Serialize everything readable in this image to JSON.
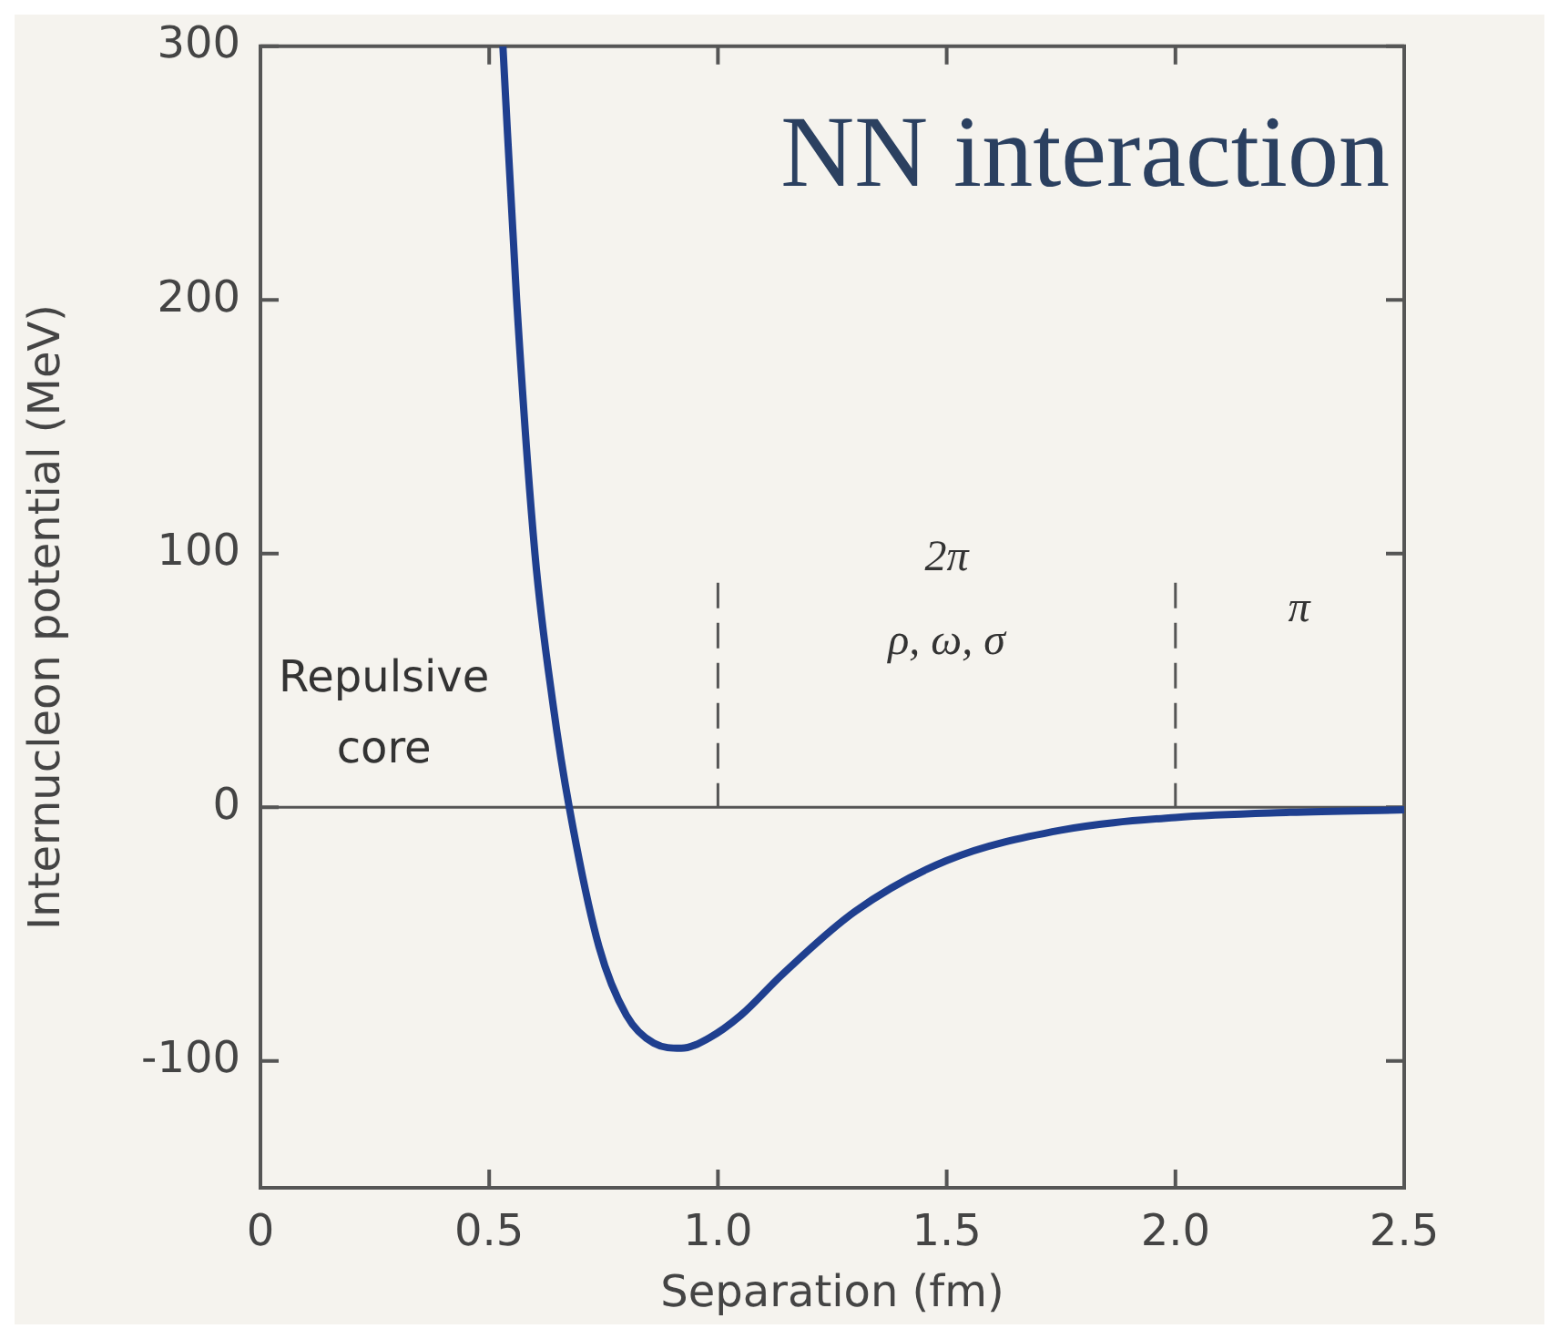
{
  "chart_data": {
    "type": "line",
    "title": "NN interaction",
    "xlabel": "Separation (fm)",
    "ylabel": "Internucleon potential (MeV)",
    "x": [
      0.53,
      0.56,
      0.6,
      0.64,
      0.675,
      0.74,
      0.8,
      0.86,
      0.92,
      0.98,
      1.05,
      1.14,
      1.3,
      1.5,
      1.75,
      2.0,
      2.25,
      2.5
    ],
    "series": [
      {
        "color": "#1f3f8f",
        "values": [
          300,
          200,
          100,
          40,
          0,
          -55,
          -82,
          -93,
          -95,
          -91,
          -82,
          -66,
          -41,
          -21,
          -9,
          -4,
          -2,
          -1
        ]
      }
    ],
    "xlim": [
      0,
      2.5
    ],
    "xticks": [
      0,
      0.5,
      {
        "value": 1,
        "label": "1.0"
      },
      1.5,
      {
        "value": 2,
        "label": "2.0"
      },
      2.5
    ],
    "ylim": [
      -150,
      300
    ],
    "yticks": [
      -100,
      0,
      100,
      200,
      300
    ],
    "ref_lines": [
      {
        "axis": "y",
        "value": 0,
        "color": "#555555",
        "line_style": "solid"
      },
      {
        "axis": "x",
        "value": 1,
        "color": "#555555",
        "line_style": "dashed"
      },
      {
        "axis": "x",
        "value": 2,
        "color": "#555555",
        "line_style": "dashed"
      }
    ],
    "annotations": [
      "Repulsive",
      "core",
      "2π",
      "ρ, ω, σ",
      "π"
    ],
    "grid": false,
    "legend": false,
    "marker": "none",
    "line_style": "solid"
  }
}
